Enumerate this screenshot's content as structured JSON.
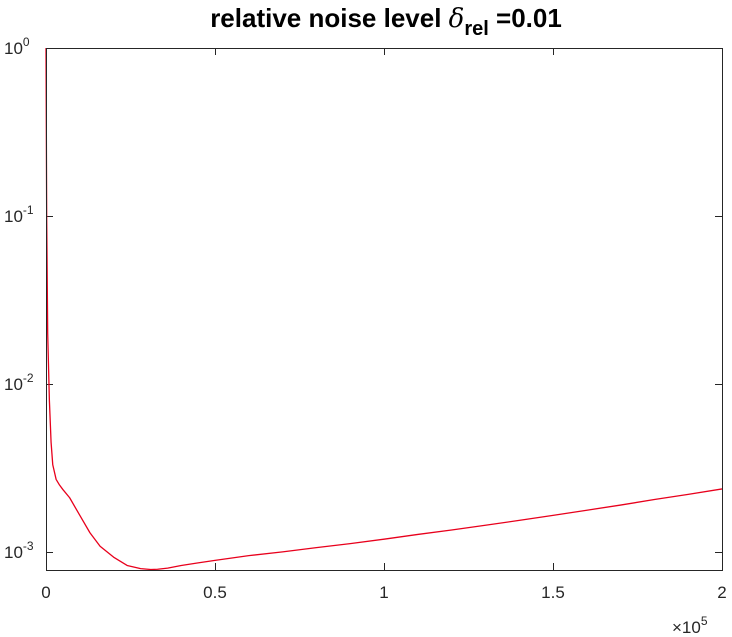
{
  "chart_data": {
    "type": "line",
    "title": {
      "prefix": "relative noise level ",
      "symbol": "δ",
      "subscript": "rel",
      "suffix": " =0.01"
    },
    "xlabel": "",
    "ylabel": "",
    "xlim": [
      0,
      200000
    ],
    "ylim": [
      0.00078,
      1
    ],
    "yscale": "log",
    "grid": false,
    "legend": "none",
    "x_ticks": [
      {
        "value": 0,
        "label": "0"
      },
      {
        "value": 50000,
        "label": "0.5"
      },
      {
        "value": 100000,
        "label": "1"
      },
      {
        "value": 150000,
        "label": "1.5"
      },
      {
        "value": 200000,
        "label": "2"
      }
    ],
    "x_exponent": {
      "times": "×10",
      "power": "5"
    },
    "y_ticks": [
      {
        "value": 1,
        "base": "10",
        "power": "0"
      },
      {
        "value": 0.1,
        "base": "10",
        "power": "-1"
      },
      {
        "value": 0.01,
        "base": "10",
        "power": "-2"
      },
      {
        "value": 0.001,
        "base": "10",
        "power": "-3"
      }
    ],
    "series": [
      {
        "color": "#e8001c",
        "x": [
          0,
          200,
          500,
          1000,
          1500,
          2000,
          3000,
          4000,
          5000,
          7000,
          10000,
          13000,
          16000,
          20000,
          24000,
          28000,
          31000,
          33000,
          36000,
          40000,
          45000,
          50000,
          60000,
          70000,
          80000,
          90000,
          100000,
          110000,
          120000,
          130000,
          140000,
          150000,
          160000,
          170000,
          180000,
          190000,
          200000
        ],
        "y": [
          1,
          0.1,
          0.02,
          0.008,
          0.0045,
          0.0033,
          0.0027,
          0.0025,
          0.00235,
          0.0021,
          0.00165,
          0.0013,
          0.00108,
          0.00093,
          0.00083,
          0.000795,
          0.000785,
          0.000788,
          0.0008,
          0.00083,
          0.00086,
          0.00089,
          0.00095,
          0.001,
          0.00106,
          0.00112,
          0.00119,
          0.00127,
          0.00135,
          0.00144,
          0.00154,
          0.00165,
          0.00177,
          0.0019,
          0.00205,
          0.0022,
          0.00237
        ]
      }
    ]
  }
}
